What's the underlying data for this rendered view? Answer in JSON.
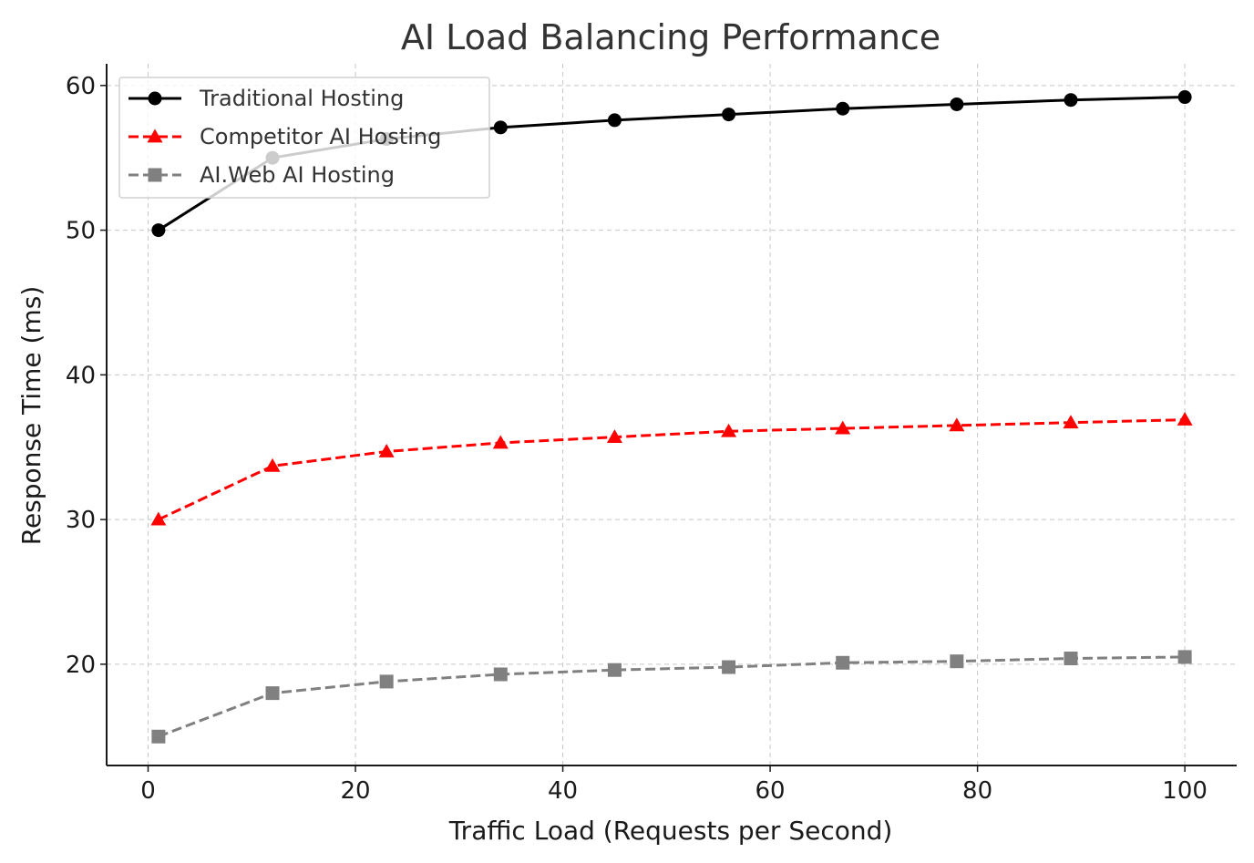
{
  "chart_data": {
    "type": "line",
    "title": "AI Load Balancing Performance",
    "xlabel": "Traffic Load (Requests per Second)",
    "ylabel": "Response Time (ms)",
    "xlim": [
      -4,
      105
    ],
    "ylim": [
      13,
      61.5
    ],
    "xticks": [
      0,
      20,
      40,
      60,
      80,
      100
    ],
    "yticks": [
      20,
      30,
      40,
      50,
      60
    ],
    "grid": true,
    "legend_position": "top-left",
    "x": [
      1,
      12,
      23,
      34,
      45,
      56,
      67,
      78,
      89,
      100
    ],
    "series": [
      {
        "name": "Traditional Hosting",
        "color": "#000000",
        "line_style": "solid",
        "marker": "circle",
        "values": [
          50.0,
          55.0,
          56.3,
          57.1,
          57.6,
          58.0,
          58.4,
          58.7,
          59.0,
          59.2
        ]
      },
      {
        "name": "Competitor AI Hosting",
        "color": "#ff0000",
        "line_style": "dashed",
        "marker": "triangle",
        "values": [
          30.0,
          33.7,
          34.7,
          35.3,
          35.7,
          36.1,
          36.3,
          36.5,
          36.7,
          36.9
        ]
      },
      {
        "name": "AI.Web AI Hosting",
        "color": "#808080",
        "line_style": "dashed",
        "marker": "square",
        "values": [
          15.0,
          18.0,
          18.8,
          19.3,
          19.6,
          19.8,
          20.1,
          20.2,
          20.4,
          20.5
        ]
      }
    ]
  }
}
